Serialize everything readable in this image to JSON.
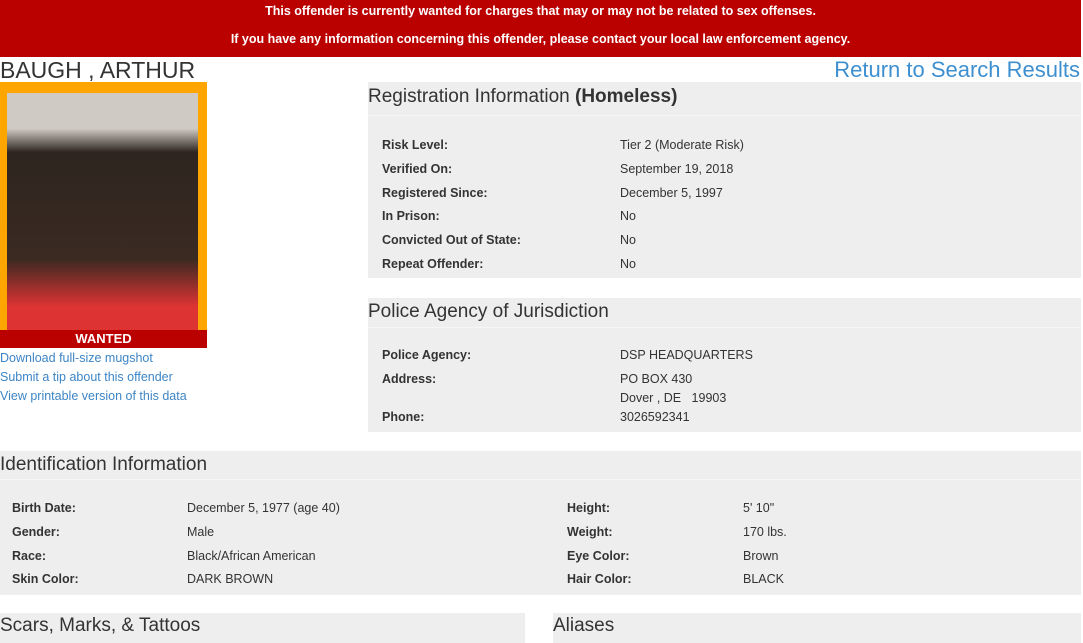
{
  "banner": {
    "line1": "This offender is currently wanted for charges that may or may not be related to sex offenses.",
    "line2": "If you have any information concerning this offender, please contact your local law enforcement agency."
  },
  "offender_name": "BAUGH , ARTHUR",
  "return_link": "Return to Search Results",
  "photo": {
    "status_label": "WANTED",
    "frame_color": "#ffa500"
  },
  "links": [
    "Download full-size mugshot",
    "Submit a tip about this offender",
    "View printable version of this data"
  ],
  "registration": {
    "title": "Registration Information",
    "title_bold": "(Homeless)",
    "rows": [
      {
        "label": "Risk Level:",
        "value": "Tier 2 (Moderate Risk)"
      },
      {
        "label": "Verified On:",
        "value": "September 19, 2018"
      },
      {
        "label": "Registered Since:",
        "value": "December 5, 1997"
      },
      {
        "label": "In Prison:",
        "value": "No"
      },
      {
        "label": "Convicted Out of State:",
        "value": "No"
      },
      {
        "label": "Repeat Offender:",
        "value": "No"
      }
    ]
  },
  "police": {
    "title": "Police Agency of Jurisdiction",
    "agency_label": "Police Agency:",
    "agency": "DSP HEADQUARTERS",
    "address_label": "Address:",
    "address1": "PO BOX 430",
    "address2": "Dover , DE   19903",
    "phone_label": "Phone:",
    "phone": "3026592341"
  },
  "identification": {
    "title": "Identification Information",
    "left": [
      {
        "label": "Birth Date:",
        "value": "December 5, 1977 (age 40)"
      },
      {
        "label": "Gender:",
        "value": "Male"
      },
      {
        "label": "Race:",
        "value": "Black/African American"
      },
      {
        "label": "Skin Color:",
        "value": "DARK BROWN"
      }
    ],
    "right": [
      {
        "label": "Height:",
        "value": "5' 10\""
      },
      {
        "label": "Weight:",
        "value": "170 lbs."
      },
      {
        "label": "Eye Color:",
        "value": "Brown"
      },
      {
        "label": "Hair Color:",
        "value": "BLACK"
      }
    ]
  },
  "scars": {
    "title": "Scars, Marks, & Tattoos"
  },
  "aliases": {
    "title": "Aliases"
  },
  "colors": {
    "banner": "#bb0000",
    "link": "#3d85c6",
    "section_bg": "#eeeeee"
  }
}
